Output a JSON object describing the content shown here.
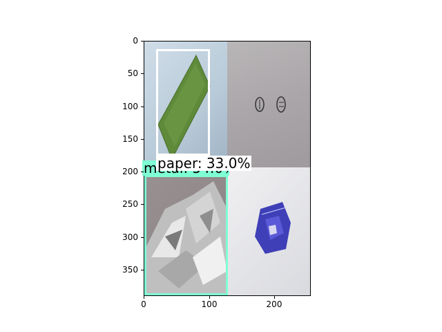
{
  "y_ticks": [
    "0",
    "50",
    "100",
    "150",
    "200",
    "250",
    "300",
    "350"
  ],
  "x_ticks": [
    "0",
    "100",
    "200"
  ],
  "detections": [
    {
      "label": "paper: 33.0%",
      "color": "#ffffff"
    },
    {
      "label": "metal: 54.0%",
      "color": "#7fffd4"
    }
  ],
  "colors": {
    "paper_box": "#ffffff",
    "metal_box": "#7fffd4"
  },
  "tiles": [
    {
      "name": "green-paper-strip",
      "icon": "paper-image"
    },
    {
      "name": "grey-cardboard-with-stamps",
      "icon": "cardboard-image"
    },
    {
      "name": "crumpled-aluminum-foil",
      "icon": "foil-image"
    },
    {
      "name": "blue-crumpled-wrapper",
      "icon": "wrapper-image"
    }
  ]
}
